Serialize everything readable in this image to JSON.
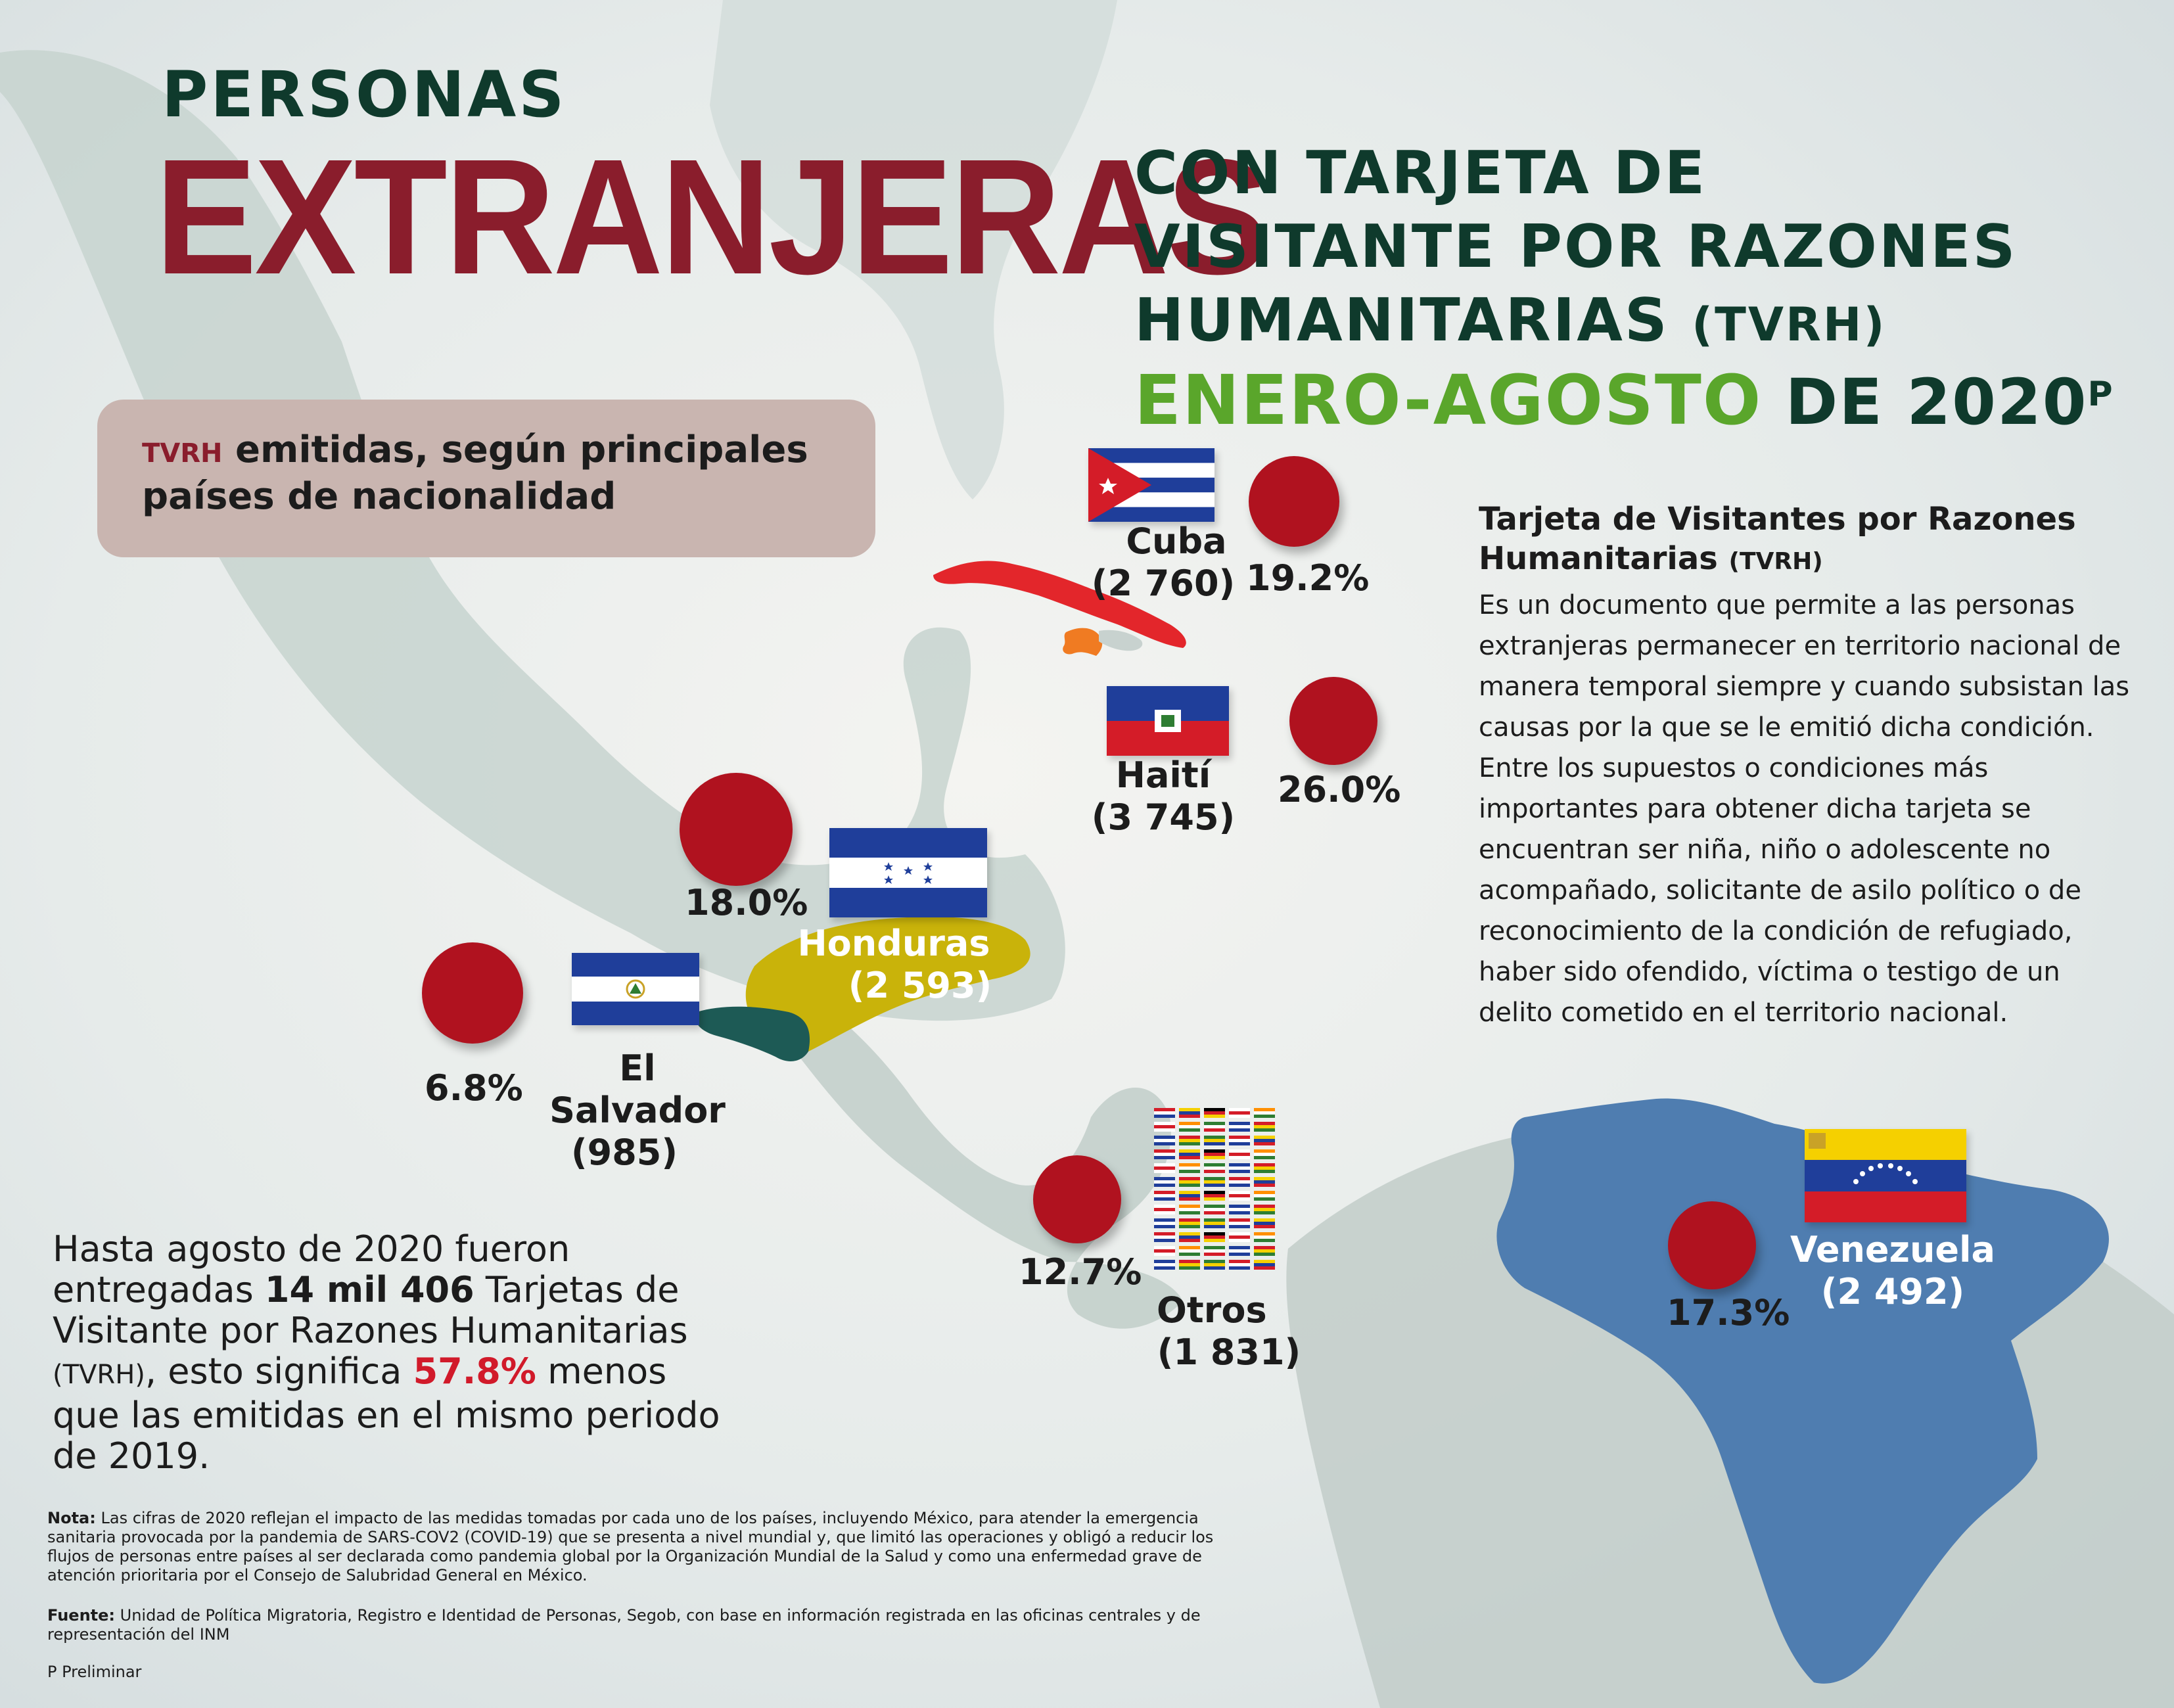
{
  "title": {
    "line1": "PERSONAS",
    "line2": "EXTRANJERAS",
    "subtitle_line1": "CON TARJETA DE",
    "subtitle_line2": "VISITANTE POR RAZONES",
    "subtitle_line3": "HUMANITARIAS",
    "subtitle_abbr": "(TVRH)",
    "period_green": "ENERO-AGOSTO",
    "period_rest": "DE 2020",
    "period_mark": "P"
  },
  "box": {
    "abbr": "TVRH",
    "text": "emitidas, según principales países de nacionalidad"
  },
  "countries": {
    "cuba": {
      "name": "Cuba",
      "count": "(2 760)",
      "pct": "19.2%"
    },
    "haiti": {
      "name": "Haití",
      "count": "(3 745)",
      "pct": "26.0%"
    },
    "honduras": {
      "name": "Honduras",
      "count": "(2 593)",
      "pct": "18.0%"
    },
    "el_salvador": {
      "name": "El Salvador",
      "count": "(985)",
      "pct": "6.8%"
    },
    "otros": {
      "name": "Otros",
      "count": "(1 831)",
      "pct": "12.7%"
    },
    "venezuela": {
      "name": "Venezuela",
      "count": "(2 492)",
      "pct": "17.3%"
    }
  },
  "description": {
    "title": "Tarjeta de Visitantes por Razones Humanitarias",
    "title_abbr": "(TVRH)",
    "body": "Es un documento que permite a las personas extranjeras permanecer en territorio nacional de manera temporal siempre y cuando subsistan las causas por la que se le emitió dicha condición. Entre los supuestos o condiciones más importantes para obtener dicha tarjeta se encuentran ser niña, niño o adolescente no acompañado, solicitante de asilo político o de reconocimiento de la condición de refugiado, haber sido ofendido, víctima o testigo de un delito cometido en el territorio nacional."
  },
  "summary": {
    "p1": "Hasta agosto de 2020 fueron entregadas",
    "bold": "14 mil 406",
    "p2": "Tarjetas de Visitante por Razones Humanitarias",
    "abbr": "(TVRH)",
    "p3": ", esto significa",
    "pct": "57.8%",
    "p4": "menos que las emitidas en el mismo periodo de 2019."
  },
  "notes": {
    "nota_label": "Nota:",
    "nota_text": "Las cifras de 2020 reflejan el impacto de las medidas tomadas por cada uno de los países, incluyendo México, para atender la emergencia sanitaria provocada por la pandemia de SARS-COV2 (COVID-19) que se presenta a nivel mundial y, que limitó las operaciones y obligó a reducir los flujos de personas entre países al ser declarada como pandemia global por la Organización Mundial de la Salud y como una enfermedad grave de atención prioritaria por el Consejo de Salubridad General en México.",
    "fuente_label": "Fuente:",
    "fuente_text": "Unidad de Política Migratoria, Registro e Identidad de Personas, Segob, con base en información registrada en las oficinas centrales y de representación del INM",
    "preliminar": "P Preliminar"
  },
  "colors": {
    "dark_green": "#0f3a2c",
    "maroon": "#8a1d2c",
    "green": "#5aa62b",
    "dot_red": "#b0121f",
    "venezuela_blue": "#4f7db0",
    "honduras_gold": "#c9b30a",
    "salvador_teal": "#1d5a55"
  }
}
